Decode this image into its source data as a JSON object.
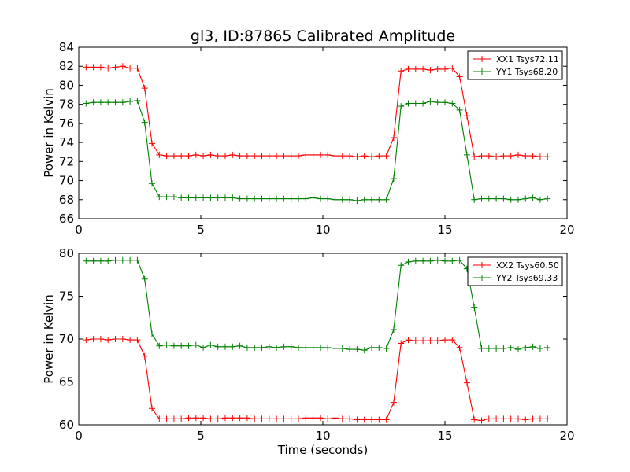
{
  "chart_data": [
    {
      "type": "line",
      "title": "gl3, ID:87865 Calibrated Amplitude",
      "xlabel": "",
      "ylabel": "Power in Kelvin",
      "xlim": [
        0,
        20
      ],
      "ylim": [
        66,
        84
      ],
      "xticks": [
        "0",
        "5",
        "10",
        "15",
        "20"
      ],
      "yticks": [
        "66",
        "68",
        "70",
        "72",
        "74",
        "76",
        "78",
        "80",
        "82",
        "84"
      ],
      "grid": false,
      "legend_position": "top-right",
      "x": [
        0.3,
        0.6,
        0.9,
        1.2,
        1.5,
        1.8,
        2.1,
        2.4,
        2.7,
        3.0,
        3.3,
        3.6,
        3.9,
        4.2,
        4.5,
        4.8,
        5.1,
        5.4,
        5.7,
        6.0,
        6.3,
        6.6,
        6.9,
        7.2,
        7.5,
        7.8,
        8.1,
        8.4,
        8.7,
        9.0,
        9.3,
        9.6,
        9.9,
        10.2,
        10.5,
        10.8,
        11.1,
        11.4,
        11.7,
        12.0,
        12.3,
        12.6,
        12.9,
        13.2,
        13.5,
        13.8,
        14.1,
        14.4,
        14.7,
        15.0,
        15.3,
        15.6,
        15.9,
        16.2,
        16.5,
        16.8,
        17.1,
        17.4,
        17.7,
        18.0,
        18.3,
        18.6,
        18.9,
        19.2
      ],
      "series": [
        {
          "name": "XX1 Tsys72.11",
          "color": "#ff0000",
          "values": [
            81.9,
            81.9,
            81.9,
            81.8,
            81.9,
            82.0,
            81.8,
            81.8,
            79.7,
            73.9,
            72.7,
            72.6,
            72.6,
            72.6,
            72.6,
            72.7,
            72.6,
            72.7,
            72.6,
            72.6,
            72.7,
            72.6,
            72.6,
            72.6,
            72.6,
            72.6,
            72.6,
            72.6,
            72.6,
            72.6,
            72.7,
            72.7,
            72.7,
            72.7,
            72.6,
            72.6,
            72.6,
            72.5,
            72.6,
            72.5,
            72.6,
            72.6,
            74.5,
            81.5,
            81.7,
            81.7,
            81.7,
            81.6,
            81.7,
            81.7,
            81.8,
            80.9,
            76.8,
            72.5,
            72.6,
            72.6,
            72.5,
            72.6,
            72.6,
            72.7,
            72.6,
            72.6,
            72.5,
            72.5
          ]
        },
        {
          "name": "YY1 Tsys68.20",
          "color": "#008000",
          "values": [
            78.1,
            78.2,
            78.2,
            78.2,
            78.2,
            78.2,
            78.3,
            78.4,
            76.1,
            69.7,
            68.3,
            68.3,
            68.3,
            68.2,
            68.2,
            68.2,
            68.2,
            68.2,
            68.2,
            68.2,
            68.2,
            68.1,
            68.1,
            68.1,
            68.1,
            68.1,
            68.1,
            68.1,
            68.1,
            68.1,
            68.1,
            68.2,
            68.1,
            68.1,
            68.0,
            68.0,
            68.0,
            67.9,
            68.0,
            68.0,
            68.0,
            68.0,
            70.2,
            77.8,
            78.1,
            78.1,
            78.1,
            78.3,
            78.2,
            78.2,
            78.1,
            77.4,
            72.7,
            68.0,
            68.1,
            68.1,
            68.1,
            68.1,
            68.0,
            68.0,
            68.1,
            68.2,
            68.0,
            68.1
          ]
        }
      ]
    },
    {
      "type": "line",
      "title": "",
      "xlabel": "Time (seconds)",
      "ylabel": "Power in Kelvin",
      "xlim": [
        0,
        20
      ],
      "ylim": [
        60,
        80
      ],
      "xticks": [
        "0",
        "5",
        "10",
        "15",
        "20"
      ],
      "yticks": [
        "60",
        "65",
        "70",
        "75",
        "80"
      ],
      "grid": false,
      "legend_position": "top-right",
      "x": [
        0.3,
        0.6,
        0.9,
        1.2,
        1.5,
        1.8,
        2.1,
        2.4,
        2.7,
        3.0,
        3.3,
        3.6,
        3.9,
        4.2,
        4.5,
        4.8,
        5.1,
        5.4,
        5.7,
        6.0,
        6.3,
        6.6,
        6.9,
        7.2,
        7.5,
        7.8,
        8.1,
        8.4,
        8.7,
        9.0,
        9.3,
        9.6,
        9.9,
        10.2,
        10.5,
        10.8,
        11.1,
        11.4,
        11.7,
        12.0,
        12.3,
        12.6,
        12.9,
        13.2,
        13.5,
        13.8,
        14.1,
        14.4,
        14.7,
        15.0,
        15.3,
        15.6,
        15.9,
        16.2,
        16.5,
        16.8,
        17.1,
        17.4,
        17.7,
        18.0,
        18.3,
        18.6,
        18.9,
        19.2
      ],
      "series": [
        {
          "name": "XX2 Tsys60.50",
          "color": "#ff0000",
          "values": [
            69.9,
            70.0,
            70.0,
            69.9,
            70.0,
            70.0,
            69.9,
            69.9,
            68.0,
            61.9,
            60.7,
            60.7,
            60.7,
            60.7,
            60.8,
            60.8,
            60.8,
            60.7,
            60.7,
            60.8,
            60.8,
            60.8,
            60.8,
            60.7,
            60.7,
            60.7,
            60.7,
            60.7,
            60.7,
            60.7,
            60.8,
            60.8,
            60.8,
            60.7,
            60.8,
            60.7,
            60.7,
            60.6,
            60.6,
            60.6,
            60.6,
            60.6,
            62.6,
            69.5,
            69.9,
            69.8,
            69.8,
            69.8,
            69.8,
            69.9,
            69.9,
            69.0,
            64.9,
            60.6,
            60.5,
            60.7,
            60.7,
            60.7,
            60.7,
            60.7,
            60.6,
            60.7,
            60.7,
            60.7
          ]
        },
        {
          "name": "YY2 Tsys69.33",
          "color": "#008000",
          "values": [
            79.1,
            79.1,
            79.1,
            79.1,
            79.2,
            79.2,
            79.2,
            79.2,
            77.0,
            70.6,
            69.2,
            69.3,
            69.2,
            69.2,
            69.2,
            69.3,
            69.0,
            69.3,
            69.1,
            69.1,
            69.1,
            69.2,
            69.0,
            69.0,
            69.0,
            69.1,
            69.0,
            69.1,
            69.1,
            69.0,
            69.0,
            69.0,
            69.0,
            69.0,
            68.9,
            68.9,
            68.8,
            68.8,
            68.7,
            69.0,
            69.0,
            68.9,
            71.1,
            78.6,
            79.0,
            79.1,
            79.1,
            79.1,
            79.2,
            79.1,
            79.1,
            79.2,
            78.2,
            73.7,
            68.9,
            68.9,
            68.9,
            68.9,
            69.0,
            68.8,
            69.0,
            69.1,
            68.9,
            69.0
          ]
        }
      ]
    }
  ]
}
